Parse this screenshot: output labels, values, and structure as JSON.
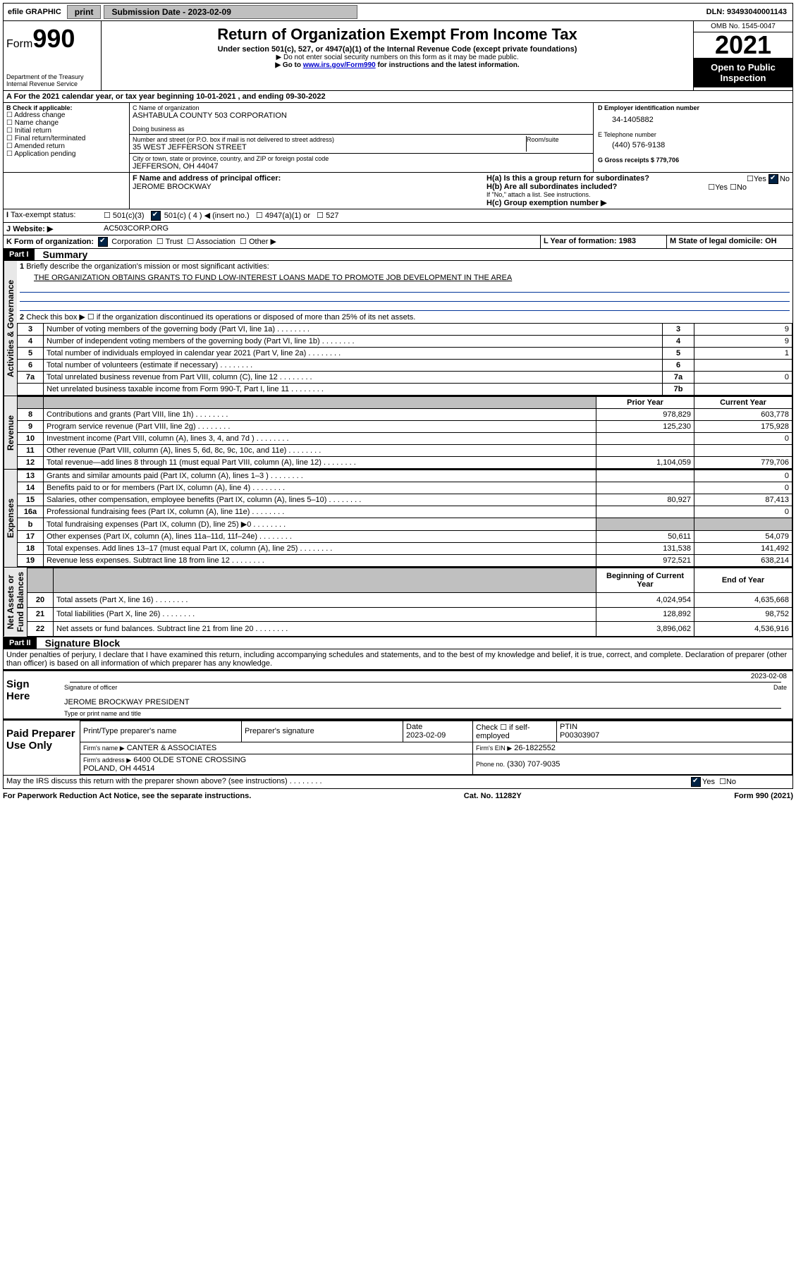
{
  "topbar": {
    "efile": "efile GRAPHIC",
    "print": "print",
    "sub_label": "Submission Date - 2023-02-09",
    "dln": "DLN: 93493040001143"
  },
  "header": {
    "form_small": "Form",
    "form_big": "990",
    "title": "Return of Organization Exempt From Income Tax",
    "subtitle": "Under section 501(c), 527, or 4947(a)(1) of the Internal Revenue Code (except private foundations)",
    "note1": "▶ Do not enter social security numbers on this form as it may be made public.",
    "note2_a": "▶ Go to ",
    "note2_link": "www.irs.gov/Form990",
    "note2_b": " for instructions and the latest information.",
    "dept": "Department of the Treasury\nInternal Revenue Service",
    "omb": "OMB No. 1545-0047",
    "year": "2021",
    "open": "Open to Public\nInspection"
  },
  "period": {
    "line": "For the 2021 calendar year, or tax year beginning 10-01-2021  , and ending 09-30-2022"
  },
  "blockB": {
    "hdr": "B Check if applicable:",
    "items": [
      "Address change",
      "Name change",
      "Initial return",
      "Final return/terminated",
      "Amended return",
      "Application pending"
    ]
  },
  "blockC": {
    "label": "C Name of organization",
    "name": "ASHTABULA COUNTY 503 CORPORATION",
    "dba_label": "Doing business as",
    "addr_label": "Number and street (or P.O. box if mail is not delivered to street address)",
    "room": "Room/suite",
    "addr": "35 WEST JEFFERSON STREET",
    "city_label": "City or town, state or province, country, and ZIP or foreign postal code",
    "city": "JEFFERSON, OH  44047"
  },
  "blockDE": {
    "d_label": "D Employer identification number",
    "ein": "34-1405882",
    "e_label": "E Telephone number",
    "phone": "(440) 576-9138",
    "g_label": "G Gross receipts $ 779,706"
  },
  "blockF": {
    "label": "F  Name and address of principal officer:",
    "name": "JEROME BROCKWAY"
  },
  "blockH": {
    "ha": "H(a)  Is this a group return for subordinates?",
    "hb": "H(b)  Are all subordinates included?",
    "hb_note": "If \"No,\" attach a list. See instructions.",
    "hc": "H(c)  Group exemption number ▶",
    "yes": "Yes",
    "no": "No"
  },
  "blockI": {
    "label": "Tax-exempt status:",
    "opts": [
      "501(c)(3)",
      "501(c) ( 4 ) ◀ (insert no.)",
      "4947(a)(1) or",
      "527"
    ]
  },
  "blockJ": {
    "label": "Website: ▶",
    "val": "AC503CORP.ORG"
  },
  "blockK": {
    "label": "K Form of organization:",
    "opts": [
      "Corporation",
      "Trust",
      "Association",
      "Other ▶"
    ]
  },
  "blockL": {
    "label": "L Year of formation: 1983"
  },
  "blockM": {
    "label": "M State of legal domicile: OH"
  },
  "part1": {
    "hdr": "Part I",
    "title": "Summary",
    "line1a": "Briefly describe the organization's mission or most significant activities:",
    "line1b": "THE ORGANIZATION OBTAINS GRANTS TO FUND LOW-INTEREST LOANS MADE TO PROMOTE JOB DEVELOPMENT IN THE AREA",
    "line2": "Check this box ▶ ☐  if the organization discontinued its operations or disposed of more than 25% of its net assets.",
    "side1": "Activities & Governance",
    "side2": "Revenue",
    "side3": "Expenses",
    "side4": "Net Assets or\nFund Balances",
    "rows_gov": [
      {
        "n": "3",
        "d": "Number of voting members of the governing body (Part VI, line 1a)",
        "box": "3",
        "v": "9"
      },
      {
        "n": "4",
        "d": "Number of independent voting members of the governing body (Part VI, line 1b)",
        "box": "4",
        "v": "9"
      },
      {
        "n": "5",
        "d": "Total number of individuals employed in calendar year 2021 (Part V, line 2a)",
        "box": "5",
        "v": "1"
      },
      {
        "n": "6",
        "d": "Total number of volunteers (estimate if necessary)",
        "box": "6",
        "v": ""
      },
      {
        "n": "7a",
        "d": "Total unrelated business revenue from Part VIII, column (C), line 12",
        "box": "7a",
        "v": "0"
      },
      {
        "n": "",
        "d": "Net unrelated business taxable income from Form 990-T, Part I, line 11",
        "box": "7b",
        "v": ""
      }
    ],
    "col_hdr_prior": "Prior Year",
    "col_hdr_curr": "Current Year",
    "rows_rev": [
      {
        "n": "8",
        "d": "Contributions and grants (Part VIII, line 1h)",
        "p": "978,829",
        "c": "603,778"
      },
      {
        "n": "9",
        "d": "Program service revenue (Part VIII, line 2g)",
        "p": "125,230",
        "c": "175,928"
      },
      {
        "n": "10",
        "d": "Investment income (Part VIII, column (A), lines 3, 4, and 7d )",
        "p": "",
        "c": "0"
      },
      {
        "n": "11",
        "d": "Other revenue (Part VIII, column (A), lines 5, 6d, 8c, 9c, 10c, and 11e)",
        "p": "",
        "c": ""
      },
      {
        "n": "12",
        "d": "Total revenue—add lines 8 through 11 (must equal Part VIII, column (A), line 12)",
        "p": "1,104,059",
        "c": "779,706"
      }
    ],
    "rows_exp": [
      {
        "n": "13",
        "d": "Grants and similar amounts paid (Part IX, column (A), lines 1–3 )",
        "p": "",
        "c": "0"
      },
      {
        "n": "14",
        "d": "Benefits paid to or for members (Part IX, column (A), line 4)",
        "p": "",
        "c": "0"
      },
      {
        "n": "15",
        "d": "Salaries, other compensation, employee benefits (Part IX, column (A), lines 5–10)",
        "p": "80,927",
        "c": "87,413"
      },
      {
        "n": "16a",
        "d": "Professional fundraising fees (Part IX, column (A), line 11e)",
        "p": "",
        "c": "0"
      },
      {
        "n": "b",
        "d": "Total fundraising expenses (Part IX, column (D), line 25) ▶0",
        "p": "shade",
        "c": "shade"
      },
      {
        "n": "17",
        "d": "Other expenses (Part IX, column (A), lines 11a–11d, 11f–24e)",
        "p": "50,611",
        "c": "54,079"
      },
      {
        "n": "18",
        "d": "Total expenses. Add lines 13–17 (must equal Part IX, column (A), line 25)",
        "p": "131,538",
        "c": "141,492"
      },
      {
        "n": "19",
        "d": "Revenue less expenses. Subtract line 18 from line 12",
        "p": "972,521",
        "c": "638,214"
      }
    ],
    "col_hdr_boy": "Beginning of Current Year",
    "col_hdr_eoy": "End of Year",
    "rows_net": [
      {
        "n": "20",
        "d": "Total assets (Part X, line 16)",
        "p": "4,024,954",
        "c": "4,635,668"
      },
      {
        "n": "21",
        "d": "Total liabilities (Part X, line 26)",
        "p": "128,892",
        "c": "98,752"
      },
      {
        "n": "22",
        "d": "Net assets or fund balances. Subtract line 21 from line 20",
        "p": "3,896,062",
        "c": "4,536,916"
      }
    ]
  },
  "part2": {
    "hdr": "Part II",
    "title": "Signature Block",
    "decl": "Under penalties of perjury, I declare that I have examined this return, including accompanying schedules and statements, and to the best of my knowledge and belief, it is true, correct, and complete. Declaration of preparer (other than officer) is based on all information of which preparer has any knowledge.",
    "sign_here": "Sign Here",
    "sig_officer": "Signature of officer",
    "sig_date": "Date",
    "date_val": "2023-02-08",
    "officer": "JEROME BROCKWAY PRESIDENT",
    "officer_sub": "Type or print name and title",
    "paid": "Paid Preparer Use Only",
    "pt_name": "Print/Type preparer's name",
    "pt_sig": "Preparer's signature",
    "pt_date": "Date",
    "pt_date_val": "2023-02-09",
    "pt_check": "Check ☐ if self-employed",
    "ptin_l": "PTIN",
    "ptin": "P00303907",
    "firm_name_l": "Firm's name   ▶",
    "firm_name": "CANTER & ASSOCIATES",
    "firm_ein_l": "Firm's EIN ▶",
    "firm_ein": "26-1822552",
    "firm_addr_l": "Firm's address ▶",
    "firm_addr": "6400 OLDE STONE CROSSING\nPOLAND, OH  44514",
    "phone_l": "Phone no.",
    "phone": "(330) 707-9035",
    "discuss": "May the IRS discuss this return with the preparer shown above? (see instructions)",
    "yes": "Yes",
    "no": "No"
  },
  "footer": {
    "pra": "For Paperwork Reduction Act Notice, see the separate instructions.",
    "cat": "Cat. No. 11282Y",
    "form": "Form 990 (2021)"
  }
}
